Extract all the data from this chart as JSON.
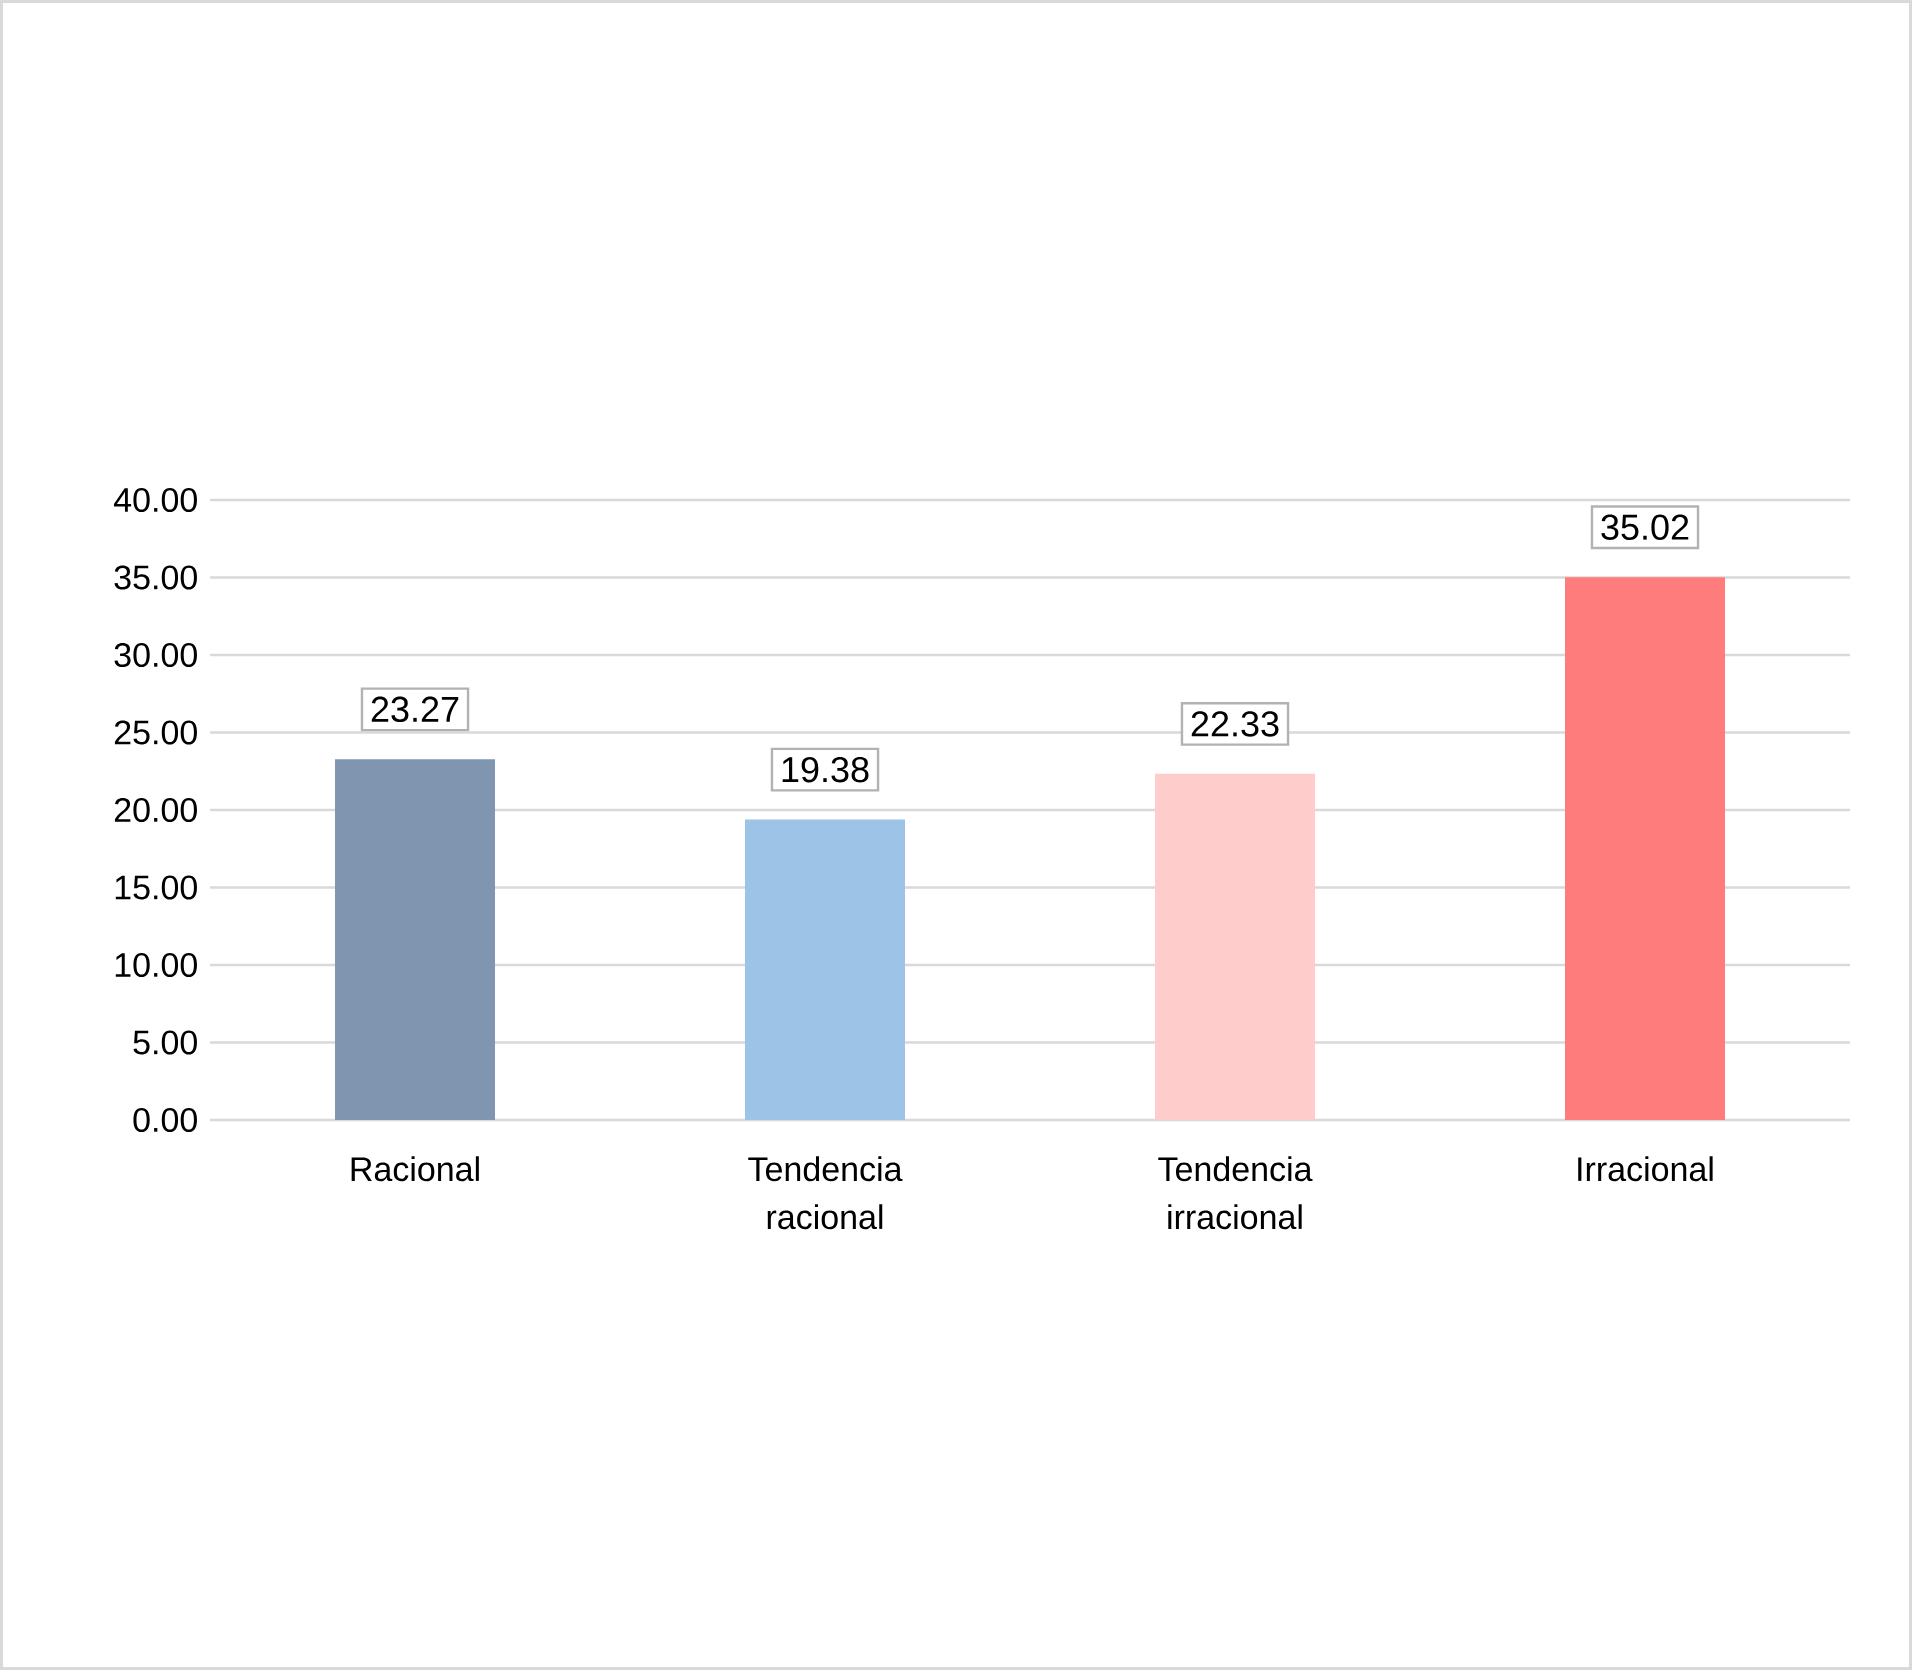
{
  "chart_data": {
    "type": "bar",
    "categories": [
      "Racional",
      "Tendencia racional",
      "Tendencia irracional",
      "Irracional"
    ],
    "values": [
      23.27,
      19.38,
      22.33,
      35.02
    ],
    "colors": [
      "#8096b0",
      "#9dc3e6",
      "#ffcccc",
      "#ff7c7c"
    ],
    "ylim": [
      0,
      40
    ],
    "yticks": [
      {
        "value": 0,
        "label": "0.00"
      },
      {
        "value": 5,
        "label": "5.00"
      },
      {
        "value": 10,
        "label": "10.00"
      },
      {
        "value": 15,
        "label": "15.00"
      },
      {
        "value": 20,
        "label": "20.00"
      },
      {
        "value": 25,
        "label": "25.00"
      },
      {
        "value": 30,
        "label": "30.00"
      },
      {
        "value": 35,
        "label": "35.00"
      },
      {
        "value": 40,
        "label": "40.00"
      }
    ],
    "grid": "y",
    "data_labels": true
  }
}
